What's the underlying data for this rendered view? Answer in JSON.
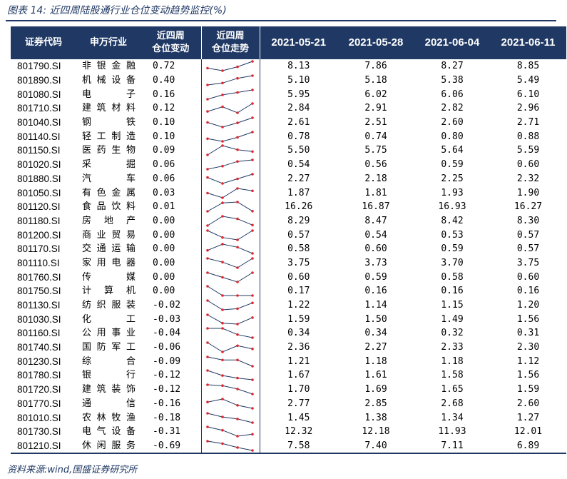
{
  "title": "图表 14:  近四周陆股通行业仓位变动趋势监控(%)",
  "source": "资料来源:wind,国盛证券研究所",
  "header": {
    "code": "证券代码",
    "industry": "申万行业",
    "change": [
      "近四周",
      "仓位变动"
    ],
    "trend": [
      "近四周",
      "仓位走势"
    ],
    "dates": [
      "2021-05-21",
      "2021-05-28",
      "2021-06-04",
      "2021-06-11"
    ]
  },
  "colors": {
    "header_bg": "#1f3864",
    "spark_line": "#1f3864",
    "spark_marker": "#e0262e"
  },
  "rows": [
    {
      "code": "801790.SI",
      "industry": "非银金融",
      "change": "0.72",
      "values": [
        "8.13",
        "7.86",
        "8.27",
        "8.85"
      ]
    },
    {
      "code": "801890.SI",
      "industry": "机械设备",
      "change": "0.40",
      "values": [
        "5.10",
        "5.18",
        "5.38",
        "5.49"
      ]
    },
    {
      "code": "801080.SI",
      "industry": "电子",
      "change": "0.16",
      "values": [
        "5.95",
        "6.02",
        "6.06",
        "6.10"
      ]
    },
    {
      "code": "801710.SI",
      "industry": "建筑材料",
      "change": "0.12",
      "values": [
        "2.84",
        "2.91",
        "2.82",
        "2.96"
      ]
    },
    {
      "code": "801040.SI",
      "industry": "钢铁",
      "change": "0.10",
      "values": [
        "2.61",
        "2.51",
        "2.60",
        "2.71"
      ]
    },
    {
      "code": "801140.SI",
      "industry": "轻工制造",
      "change": "0.10",
      "values": [
        "0.78",
        "0.74",
        "0.80",
        "0.88"
      ]
    },
    {
      "code": "801150.SI",
      "industry": "医药生物",
      "change": "0.09",
      "values": [
        "5.50",
        "5.75",
        "5.64",
        "5.59"
      ]
    },
    {
      "code": "801020.SI",
      "industry": "采掘",
      "change": "0.06",
      "values": [
        "0.54",
        "0.56",
        "0.59",
        "0.60"
      ]
    },
    {
      "code": "801880.SI",
      "industry": "汽车",
      "change": "0.06",
      "values": [
        "2.27",
        "2.18",
        "2.25",
        "2.32"
      ]
    },
    {
      "code": "801050.SI",
      "industry": "有色金属",
      "change": "0.03",
      "values": [
        "1.87",
        "1.81",
        "1.93",
        "1.90"
      ]
    },
    {
      "code": "801120.SI",
      "industry": "食品饮料",
      "change": "0.01",
      "values": [
        "16.26",
        "16.87",
        "16.93",
        "16.27"
      ]
    },
    {
      "code": "801180.SI",
      "industry": "房地产",
      "change": "0.00",
      "values": [
        "8.29",
        "8.47",
        "8.42",
        "8.30"
      ]
    },
    {
      "code": "801200.SI",
      "industry": "商业贸易",
      "change": "0.00",
      "values": [
        "0.57",
        "0.54",
        "0.53",
        "0.57"
      ]
    },
    {
      "code": "801170.SI",
      "industry": "交通运输",
      "change": "0.00",
      "values": [
        "0.58",
        "0.60",
        "0.59",
        "0.57"
      ]
    },
    {
      "code": "801110.SI",
      "industry": "家用电器",
      "change": "0.00",
      "values": [
        "3.75",
        "3.73",
        "3.70",
        "3.75"
      ]
    },
    {
      "code": "801760.SI",
      "industry": "传媒",
      "change": "0.00",
      "values": [
        "0.60",
        "0.59",
        "0.58",
        "0.60"
      ]
    },
    {
      "code": "801750.SI",
      "industry": "计算机",
      "change": "0.00",
      "values": [
        "0.17",
        "0.16",
        "0.16",
        "0.16"
      ]
    },
    {
      "code": "801130.SI",
      "industry": "纺织服装",
      "change": "-0.02",
      "values": [
        "1.22",
        "1.14",
        "1.15",
        "1.20"
      ]
    },
    {
      "code": "801030.SI",
      "industry": "化工",
      "change": "-0.03",
      "values": [
        "1.59",
        "1.50",
        "1.49",
        "1.56"
      ]
    },
    {
      "code": "801160.SI",
      "industry": "公用事业",
      "change": "-0.04",
      "values": [
        "0.34",
        "0.34",
        "0.32",
        "0.31"
      ]
    },
    {
      "code": "801740.SI",
      "industry": "国防军工",
      "change": "-0.06",
      "values": [
        "2.36",
        "2.27",
        "2.33",
        "2.30"
      ]
    },
    {
      "code": "801230.SI",
      "industry": "综合",
      "change": "-0.09",
      "values": [
        "1.21",
        "1.18",
        "1.18",
        "1.12"
      ]
    },
    {
      "code": "801780.SI",
      "industry": "银行",
      "change": "-0.12",
      "values": [
        "1.67",
        "1.61",
        "1.58",
        "1.56"
      ]
    },
    {
      "code": "801720.SI",
      "industry": "建筑装饰",
      "change": "-0.12",
      "values": [
        "1.70",
        "1.69",
        "1.65",
        "1.59"
      ]
    },
    {
      "code": "801770.SI",
      "industry": "通信",
      "change": "-0.16",
      "values": [
        "2.77",
        "2.85",
        "2.68",
        "2.60"
      ]
    },
    {
      "code": "801010.SI",
      "industry": "农林牧渔",
      "change": "-0.18",
      "values": [
        "1.45",
        "1.38",
        "1.34",
        "1.27"
      ]
    },
    {
      "code": "801730.SI",
      "industry": "电气设备",
      "change": "-0.31",
      "values": [
        "12.32",
        "12.18",
        "11.93",
        "12.01"
      ]
    },
    {
      "code": "801210.SI",
      "industry": "休闲服务",
      "change": "-0.69",
      "values": [
        "7.58",
        "7.40",
        "7.11",
        "6.89"
      ]
    }
  ]
}
